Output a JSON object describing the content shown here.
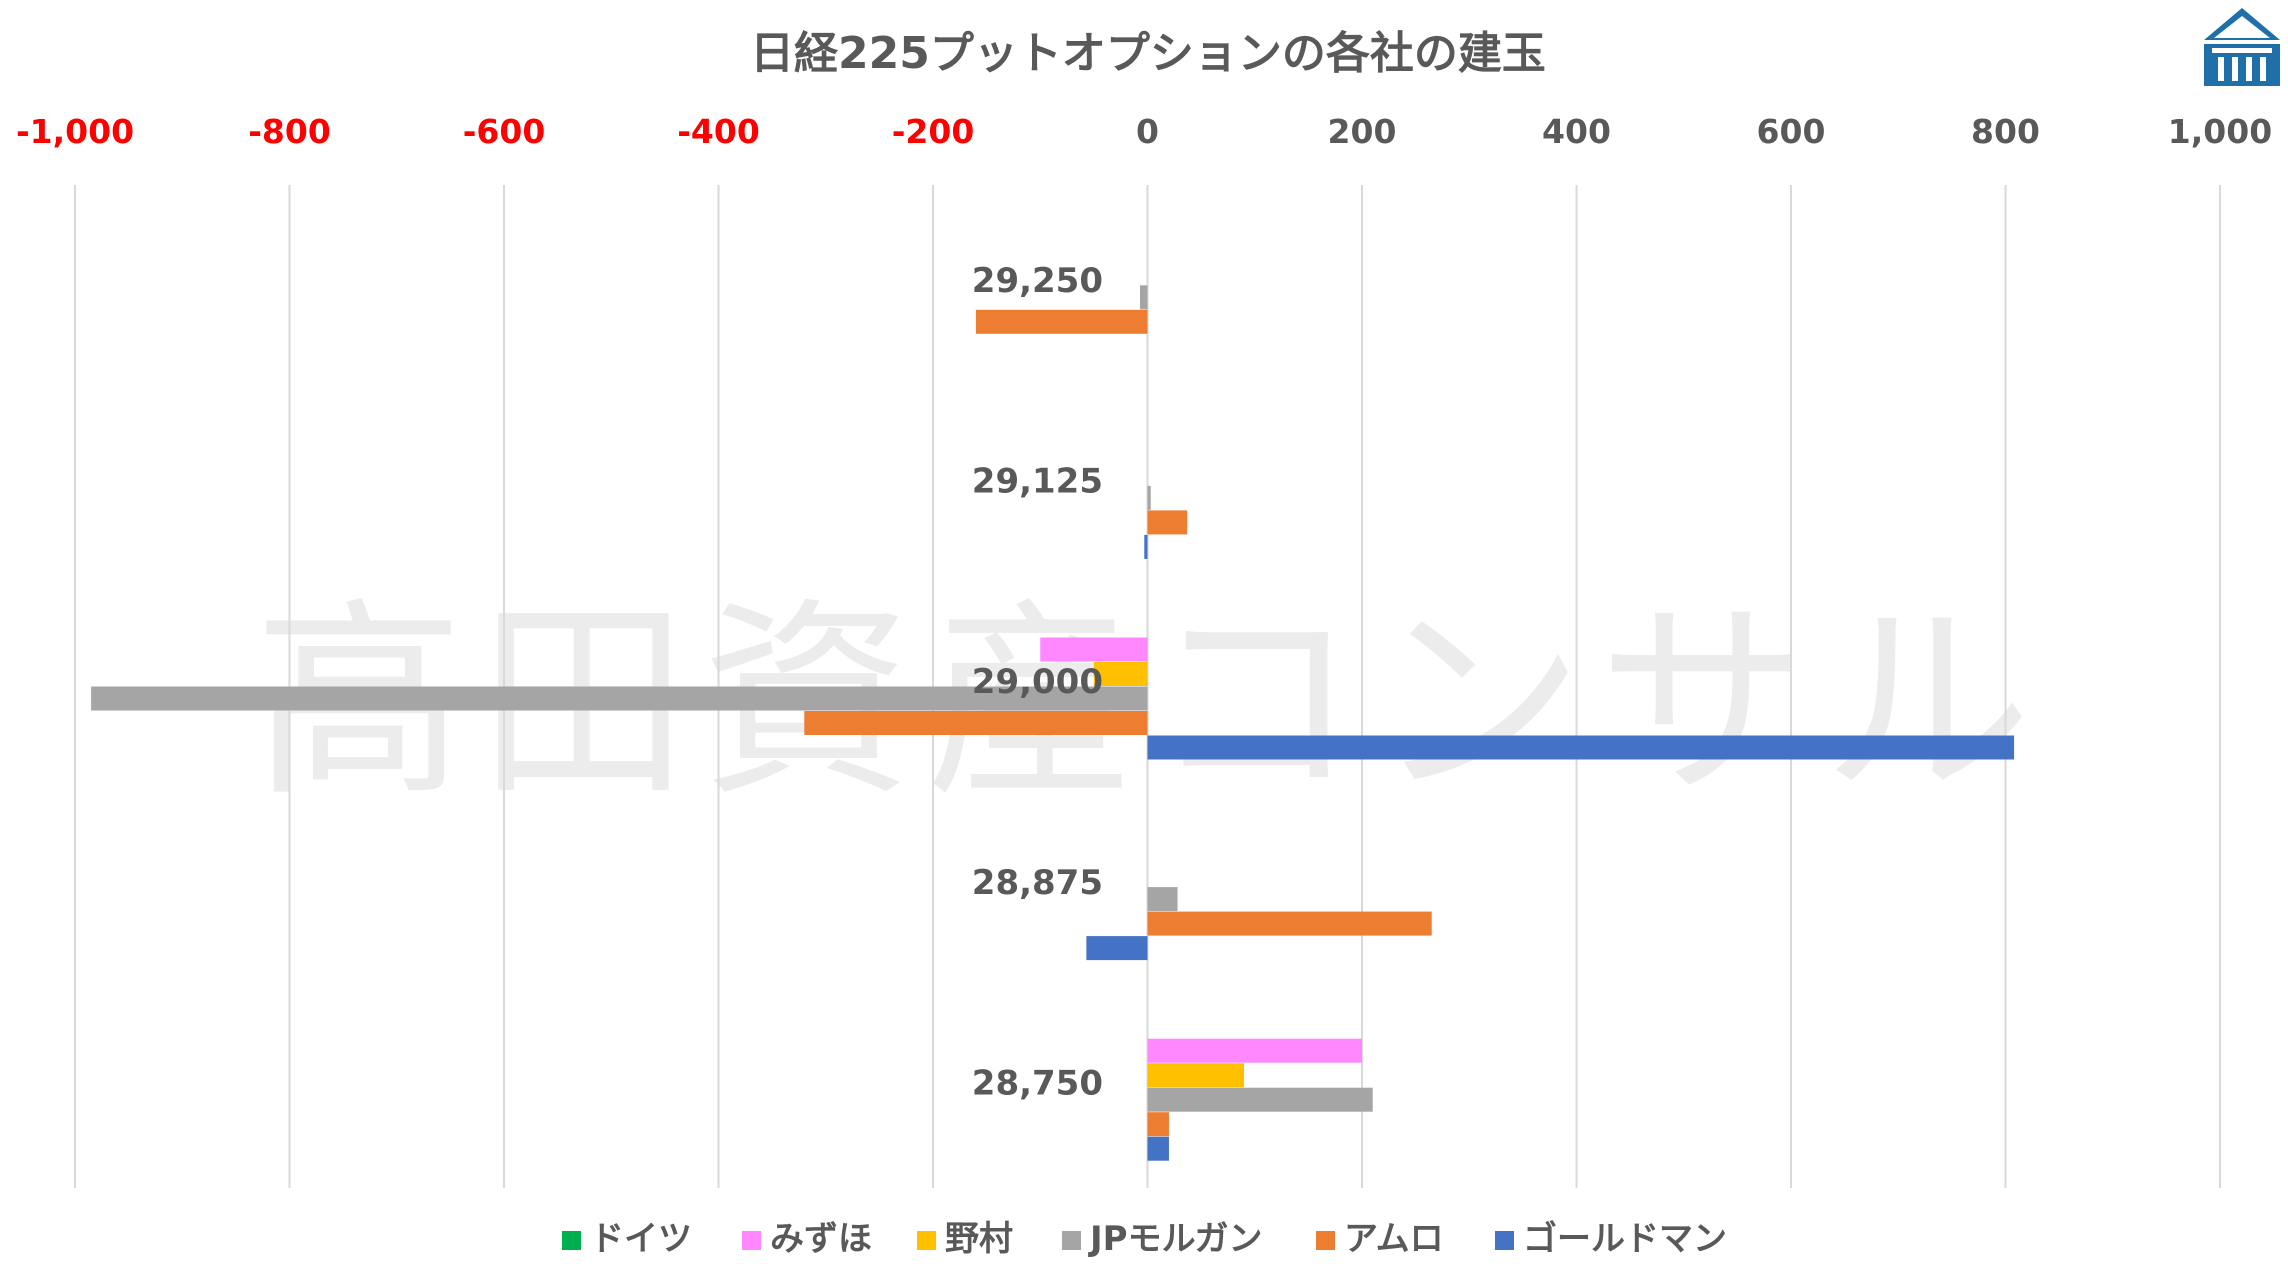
{
  "chart_data": {
    "type": "bar",
    "orientation": "horizontal",
    "title": "日経225プットオプションの各社の建玉",
    "watermark": "高田資産コンサル",
    "categories": [
      "29,250",
      "29,125",
      "29,000",
      "28,875",
      "28,750"
    ],
    "xlim": [
      -1000,
      1000
    ],
    "x_ticks": [
      {
        "value": -1000,
        "label": "-1,000"
      },
      {
        "value": -800,
        "label": "-800"
      },
      {
        "value": -600,
        "label": "-600"
      },
      {
        "value": -400,
        "label": "-400"
      },
      {
        "value": -200,
        "label": "-200"
      },
      {
        "value": 0,
        "label": "0"
      },
      {
        "value": 200,
        "label": "200"
      },
      {
        "value": 400,
        "label": "400"
      },
      {
        "value": 600,
        "label": "600"
      },
      {
        "value": 800,
        "label": "800"
      },
      {
        "value": 1000,
        "label": "1,000"
      }
    ],
    "negative_tick_color": "#ff0000",
    "positive_tick_color": "#595959",
    "axis_position": "top",
    "grid": true,
    "legend_position": "bottom",
    "series": [
      {
        "name": "ドイツ",
        "color": "#00b050",
        "values": [
          0,
          0,
          0,
          0,
          0
        ]
      },
      {
        "name": "みずほ",
        "color": "#ff88ff",
        "values": [
          0,
          0,
          -100,
          0,
          200
        ]
      },
      {
        "name": "野村",
        "color": "#ffc000",
        "values": [
          0,
          0,
          -50,
          0,
          90
        ]
      },
      {
        "name": "JPモルガン",
        "color": "#a5a5a5",
        "values": [
          -7,
          3,
          -985,
          28,
          210
        ]
      },
      {
        "name": "アムロ",
        "color": "#ed7d31",
        "values": [
          -160,
          37,
          -320,
          265,
          20
        ]
      },
      {
        "name": "ゴールドマン",
        "color": "#4472c4",
        "values": [
          0,
          -3,
          808,
          -57,
          20
        ]
      }
    ]
  },
  "logo": {
    "name": "building-logo",
    "color": "#1f6fa8"
  }
}
